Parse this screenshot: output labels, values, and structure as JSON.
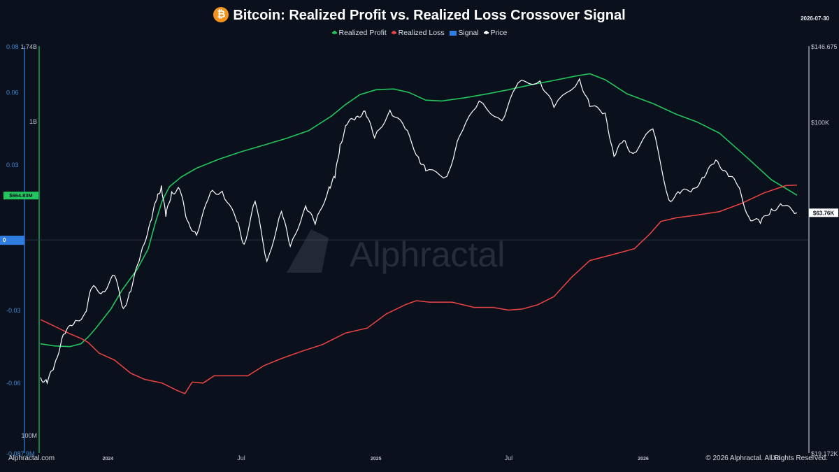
{
  "title": "Bitcoin: Realized Profit vs. Realized Loss Crossover Signal",
  "date": "2026-07-30",
  "legend": [
    {
      "label": "Realized Profit",
      "color": "#22c55e",
      "marker": "line"
    },
    {
      "label": "Realized Loss",
      "color": "#ef4444",
      "marker": "line"
    },
    {
      "label": "Signal",
      "color": "#2f7de1",
      "marker": "box"
    },
    {
      "label": "Price",
      "color": "#ffffff",
      "marker": "line"
    }
  ],
  "watermark": "Alphractal",
  "footer": {
    "left": "Alphractal.com",
    "right": "© 2026 Alphractal. All Rights Reserved."
  },
  "colors": {
    "background": "#0b111c",
    "profit": "#22c55e",
    "loss": "#ef4444",
    "signal": "#2f7de1",
    "price": "#ffffff"
  },
  "chart_data": {
    "type": "line",
    "title": "Bitcoin: Realized Profit vs. Realized Loss Crossover Signal",
    "x_ticks": [
      "2024",
      "Jul",
      "2025",
      "Jul",
      "2026",
      "Jul"
    ],
    "x_range": [
      "2023-10",
      "2026-07-30"
    ],
    "signal_axis": {
      "ticks": [
        "0.08",
        "0.06",
        "0.03",
        "0",
        "-0.03",
        "-0.06",
        "-0.087.9M"
      ],
      "range": [
        -0.088,
        0.08
      ],
      "current_label": "0"
    },
    "realized_axis": {
      "ticks": [
        "1.74B",
        "1B",
        "100M"
      ],
      "scale": "log",
      "current_label": "$664.83M"
    },
    "price_axis": {
      "ticks": [
        "$146.675",
        "$100K",
        "$19.172K"
      ],
      "scale": "log",
      "current_label": "$63.76K"
    },
    "series": [
      {
        "name": "Realized Profit",
        "color": "#22c55e",
        "values": [
          [
            "2023-10-01",
            196
          ],
          [
            "2023-10-20",
            193
          ],
          [
            "2023-11-10",
            192
          ],
          [
            "2023-11-25",
            196
          ],
          [
            "2023-12-05",
            206
          ],
          [
            "2023-12-15",
            219
          ],
          [
            "2024-01-05",
            253
          ],
          [
            "2024-01-20",
            290
          ],
          [
            "2024-02-10",
            339
          ],
          [
            "2024-02-25",
            393
          ],
          [
            "2024-03-05",
            470
          ],
          [
            "2024-03-15",
            559
          ],
          [
            "2024-03-25",
            621
          ],
          [
            "2024-04-10",
            666
          ],
          [
            "2024-05-01",
            711
          ],
          [
            "2024-06-01",
            760
          ],
          [
            "2024-07-01",
            802
          ],
          [
            "2024-08-01",
            842
          ],
          [
            "2024-09-01",
            885
          ],
          [
            "2024-10-01",
            936
          ],
          [
            "2024-11-01",
            1041
          ],
          [
            "2024-11-20",
            1132
          ],
          [
            "2024-12-10",
            1219
          ],
          [
            "2025-01-01",
            1264
          ],
          [
            "2025-01-25",
            1271
          ],
          [
            "2025-02-15",
            1239
          ],
          [
            "2025-03-10",
            1171
          ],
          [
            "2025-04-01",
            1164
          ],
          [
            "2025-05-01",
            1190
          ],
          [
            "2025-06-01",
            1225
          ],
          [
            "2025-07-01",
            1264
          ],
          [
            "2025-08-01",
            1311
          ],
          [
            "2025-09-01",
            1353
          ],
          [
            "2025-10-01",
            1398
          ],
          [
            "2025-10-20",
            1421
          ],
          [
            "2025-11-10",
            1360
          ],
          [
            "2025-12-10",
            1226
          ],
          [
            "2026-01-15",
            1140
          ],
          [
            "2026-02-15",
            1056
          ],
          [
            "2026-03-15",
            999
          ],
          [
            "2026-04-15",
            919
          ],
          [
            "2026-05-20",
            779
          ],
          [
            "2026-06-25",
            653
          ],
          [
            "2026-07-30",
            583
          ]
        ]
      },
      {
        "name": "Realized Loss",
        "color": "#ef4444",
        "values": [
          [
            "2023-10-01",
            234
          ],
          [
            "2023-10-20",
            223
          ],
          [
            "2023-11-10",
            211
          ],
          [
            "2023-11-25",
            204
          ],
          [
            "2023-12-05",
            198
          ],
          [
            "2023-12-20",
            183
          ],
          [
            "2024-01-10",
            174
          ],
          [
            "2024-02-01",
            158
          ],
          [
            "2024-02-20",
            151
          ],
          [
            "2024-03-15",
            147
          ],
          [
            "2024-04-05",
            139
          ],
          [
            "2024-04-15",
            136
          ],
          [
            "2024-04-25",
            148
          ],
          [
            "2024-05-10",
            147
          ],
          [
            "2024-05-25",
            155
          ],
          [
            "2024-06-20",
            155
          ],
          [
            "2024-07-10",
            155
          ],
          [
            "2024-08-01",
            167
          ],
          [
            "2024-08-25",
            176
          ],
          [
            "2024-09-20",
            185
          ],
          [
            "2024-10-20",
            195
          ],
          [
            "2024-11-20",
            212
          ],
          [
            "2024-12-20",
            220
          ],
          [
            "2025-01-15",
            244
          ],
          [
            "2025-02-10",
            261
          ],
          [
            "2025-02-25",
            269
          ],
          [
            "2025-03-15",
            266
          ],
          [
            "2025-04-15",
            266
          ],
          [
            "2025-05-15",
            256
          ],
          [
            "2025-06-10",
            256
          ],
          [
            "2025-07-01",
            251
          ],
          [
            "2025-07-20",
            253
          ],
          [
            "2025-08-10",
            261
          ],
          [
            "2025-09-01",
            277
          ],
          [
            "2025-09-25",
            319
          ],
          [
            "2025-10-20",
            361
          ],
          [
            "2025-11-20",
            377
          ],
          [
            "2025-12-20",
            394
          ],
          [
            "2026-01-10",
            439
          ],
          [
            "2026-01-25",
            481
          ],
          [
            "2026-02-15",
            494
          ],
          [
            "2026-03-15",
            504
          ],
          [
            "2026-04-15",
            517
          ],
          [
            "2026-05-15",
            549
          ],
          [
            "2026-06-15",
            593
          ],
          [
            "2026-07-15",
            626
          ],
          [
            "2026-07-30",
            628
          ]
        ]
      },
      {
        "name": "Price",
        "color": "#ffffff",
        "values": [
          [
            "2023-10-01",
            28000
          ],
          [
            "2023-10-10",
            27200
          ],
          [
            "2023-10-20",
            29800
          ],
          [
            "2023-11-01",
            34700
          ],
          [
            "2023-11-15",
            36500
          ],
          [
            "2023-12-01",
            38700
          ],
          [
            "2023-12-10",
            43800
          ],
          [
            "2023-12-25",
            43000
          ],
          [
            "2024-01-10",
            46600
          ],
          [
            "2024-01-22",
            39500
          ],
          [
            "2024-02-01",
            43000
          ],
          [
            "2024-02-15",
            52000
          ],
          [
            "2024-02-28",
            61000
          ],
          [
            "2024-03-08",
            68300
          ],
          [
            "2024-03-14",
            73100
          ],
          [
            "2024-03-20",
            62500
          ],
          [
            "2024-03-28",
            70800
          ],
          [
            "2024-04-08",
            71600
          ],
          [
            "2024-04-18",
            61500
          ],
          [
            "2024-05-01",
            57000
          ],
          [
            "2024-05-20",
            70600
          ],
          [
            "2024-06-05",
            71000
          ],
          [
            "2024-06-25",
            61000
          ],
          [
            "2024-07-05",
            54500
          ],
          [
            "2024-07-20",
            67500
          ],
          [
            "2024-08-05",
            50000
          ],
          [
            "2024-08-25",
            64200
          ],
          [
            "2024-09-06",
            53900
          ],
          [
            "2024-09-27",
            66000
          ],
          [
            "2024-10-10",
            60200
          ],
          [
            "2024-10-29",
            72600
          ],
          [
            "2024-11-06",
            76000
          ],
          [
            "2024-11-13",
            89800
          ],
          [
            "2024-11-22",
            98900
          ],
          [
            "2024-12-05",
            103000
          ],
          [
            "2024-12-17",
            106000
          ],
          [
            "2024-12-30",
            92700
          ],
          [
            "2025-01-20",
            106500
          ],
          [
            "2025-02-10",
            97000
          ],
          [
            "2025-02-28",
            84300
          ],
          [
            "2025-03-10",
            78600
          ],
          [
            "2025-04-08",
            76500
          ],
          [
            "2025-04-25",
            93500
          ],
          [
            "2025-05-22",
            111500
          ],
          [
            "2025-06-22",
            101000
          ],
          [
            "2025-07-14",
            122000
          ],
          [
            "2025-08-13",
            123300
          ],
          [
            "2025-09-01",
            108000
          ],
          [
            "2025-10-06",
            124500
          ],
          [
            "2025-10-20",
            108500
          ],
          [
            "2025-11-10",
            105000
          ],
          [
            "2025-11-22",
            84500
          ],
          [
            "2025-12-05",
            91500
          ],
          [
            "2025-12-18",
            85800
          ],
          [
            "2026-01-14",
            97000
          ],
          [
            "2026-02-05",
            68000
          ],
          [
            "2026-02-20",
            70200
          ],
          [
            "2026-03-10",
            72000
          ],
          [
            "2026-03-25",
            76000
          ],
          [
            "2026-04-10",
            83000
          ],
          [
            "2026-04-25",
            78000
          ],
          [
            "2026-05-10",
            73000
          ],
          [
            "2026-05-25",
            62500
          ],
          [
            "2026-06-10",
            60500
          ],
          [
            "2026-06-25",
            65000
          ],
          [
            "2026-07-10",
            66000
          ],
          [
            "2026-07-30",
            63760
          ]
        ]
      }
    ]
  }
}
